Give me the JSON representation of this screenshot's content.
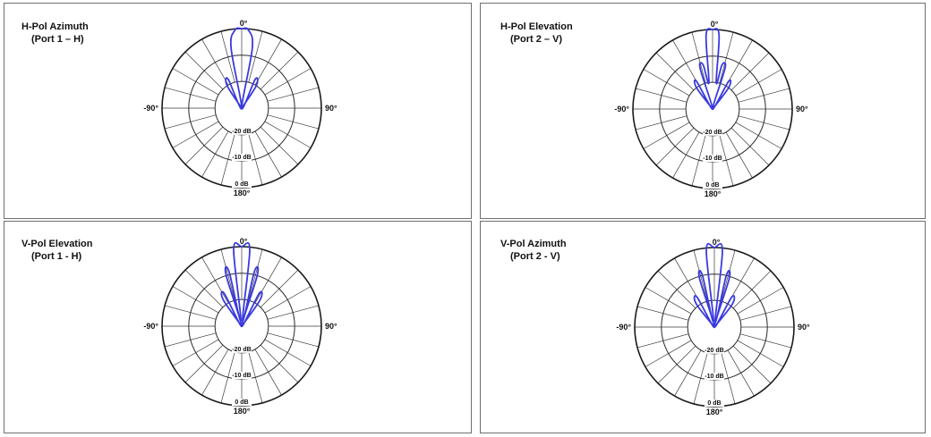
{
  "chart_data": [
    {
      "type": "polar",
      "title_line1": "H-Pol Azimuth",
      "title_line2": "(Port 1 – H)",
      "angle_labels": {
        "top": "0°",
        "left": "-90°",
        "right": "90°",
        "bottom": "180°"
      },
      "ring_labels": [
        "-20 dB",
        "-10 dB",
        "0 dB"
      ],
      "radial_range_db": [
        -30,
        0
      ],
      "spoke_step_deg": 15,
      "line_color": "#3a3adf",
      "pattern": [
        {
          "angle": -45,
          "db": -30
        },
        {
          "angle": -33,
          "db": -20
        },
        {
          "angle": -25,
          "db": -18
        },
        {
          "angle": -19,
          "db": -30
        },
        {
          "angle": -10,
          "db": -7
        },
        {
          "angle": -5,
          "db": -0.5
        },
        {
          "angle": 0,
          "db": 0
        },
        {
          "angle": 5,
          "db": -0.5
        },
        {
          "angle": 10,
          "db": -7
        },
        {
          "angle": 19,
          "db": -30
        },
        {
          "angle": 25,
          "db": -18
        },
        {
          "angle": 33,
          "db": -20
        },
        {
          "angle": 45,
          "db": -30
        }
      ]
    },
    {
      "type": "polar",
      "title_line1": "H-Pol Elevation",
      "title_line2": "(Port 2 – V)",
      "angle_labels": {
        "top": "0°",
        "left": "-90°",
        "right": "90°",
        "bottom": "180°"
      },
      "ring_labels": [
        "-20 dB",
        "-10 dB",
        "0 dB"
      ],
      "radial_range_db": [
        -30,
        0
      ],
      "spoke_step_deg": 15,
      "line_color": "#3a3adf",
      "pattern": [
        {
          "angle": -50,
          "db": -30
        },
        {
          "angle": -37,
          "db": -20
        },
        {
          "angle": -30,
          "db": -18
        },
        {
          "angle": -22,
          "db": -30
        },
        {
          "angle": -17,
          "db": -14
        },
        {
          "angle": -12,
          "db": -13
        },
        {
          "angle": -8,
          "db": -20
        },
        {
          "angle": -5,
          "db": -2
        },
        {
          "angle": 0,
          "db": 0
        },
        {
          "angle": 5,
          "db": -2
        },
        {
          "angle": 8,
          "db": -20
        },
        {
          "angle": 12,
          "db": -13
        },
        {
          "angle": 17,
          "db": -14
        },
        {
          "angle": 22,
          "db": -30
        },
        {
          "angle": 30,
          "db": -18
        },
        {
          "angle": 37,
          "db": -20
        },
        {
          "angle": 50,
          "db": -30
        }
      ]
    },
    {
      "type": "polar",
      "title_line1": "V-Pol Elevation",
      "title_line2": "(Port 1 - H)",
      "angle_labels": {
        "top": "0°",
        "left": "-90°",
        "right": "90°",
        "bottom": "180°"
      },
      "ring_labels": [
        "-20 dB",
        "-10 dB",
        "0 dB"
      ],
      "radial_range_db": [
        -30,
        0
      ],
      "spoke_step_deg": 15,
      "line_color": "#3a3adf",
      "pattern": [
        {
          "angle": -45,
          "db": -30
        },
        {
          "angle": -35,
          "db": -18
        },
        {
          "angle": -28,
          "db": -16
        },
        {
          "angle": -22,
          "db": -30
        },
        {
          "angle": -17,
          "db": -10
        },
        {
          "angle": -13,
          "db": -9
        },
        {
          "angle": -9,
          "db": -28
        },
        {
          "angle": -6,
          "db": -1
        },
        {
          "angle": 0,
          "db": 0
        },
        {
          "angle": 6,
          "db": -1
        },
        {
          "angle": 9,
          "db": -28
        },
        {
          "angle": 13,
          "db": -9
        },
        {
          "angle": 17,
          "db": -10
        },
        {
          "angle": 22,
          "db": -30
        },
        {
          "angle": 28,
          "db": -16
        },
        {
          "angle": 35,
          "db": -18
        },
        {
          "angle": 45,
          "db": -30
        }
      ]
    },
    {
      "type": "polar",
      "title_line1": "V-Pol Azimuth",
      "title_line2": "(Port 2 - V)",
      "angle_labels": {
        "top": "0°",
        "left": "-90°",
        "right": "90°",
        "bottom": "180°"
      },
      "ring_labels": [
        "-20 dB",
        "-10 dB",
        "0 dB"
      ],
      "radial_range_db": [
        -30,
        0
      ],
      "spoke_step_deg": 15,
      "line_color": "#3a3adf",
      "pattern": [
        {
          "angle": -50,
          "db": -30
        },
        {
          "angle": -38,
          "db": -19
        },
        {
          "angle": -30,
          "db": -17
        },
        {
          "angle": -22,
          "db": -30
        },
        {
          "angle": -17,
          "db": -11
        },
        {
          "angle": -13,
          "db": -10
        },
        {
          "angle": -9,
          "db": -28
        },
        {
          "angle": -6,
          "db": -1
        },
        {
          "angle": 0,
          "db": 0
        },
        {
          "angle": 6,
          "db": -1
        },
        {
          "angle": 9,
          "db": -28
        },
        {
          "angle": 13,
          "db": -10
        },
        {
          "angle": 17,
          "db": -11
        },
        {
          "angle": 22,
          "db": -30
        },
        {
          "angle": 30,
          "db": -17
        },
        {
          "angle": 38,
          "db": -19
        },
        {
          "angle": 50,
          "db": -30
        }
      ]
    }
  ]
}
